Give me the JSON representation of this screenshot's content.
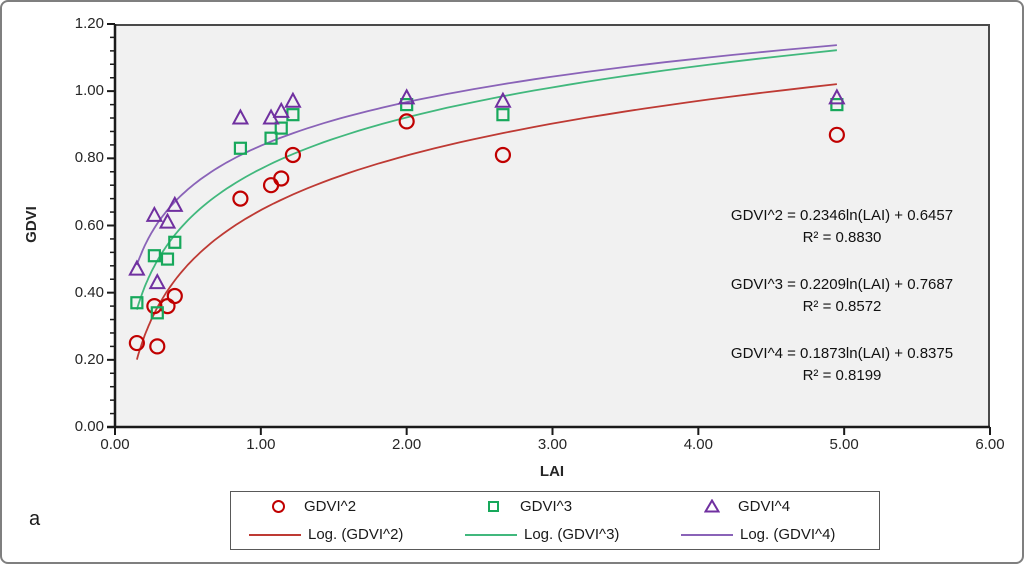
{
  "figure": {
    "panel_label": "a",
    "frame_border_color": "#7f7f7f",
    "background": "#ffffff"
  },
  "chart_data": {
    "type": "scatter",
    "title": "",
    "xlabel": "LAI",
    "ylabel": "GDVI",
    "xlim": [
      0,
      6
    ],
    "ylim": [
      0,
      1.2
    ],
    "x_ticks": [
      "0.00",
      "1.00",
      "2.00",
      "3.00",
      "4.00",
      "5.00",
      "6.00"
    ],
    "y_ticks": [
      "0.00",
      "0.20",
      "0.40",
      "0.60",
      "0.80",
      "1.00",
      "1.20"
    ],
    "y_minor_tick_step": 0.04,
    "grid": false,
    "plot_bg": "#F1F1F1",
    "legend_position": "bottom",
    "trend_x_range": [
      0.15,
      4.95
    ],
    "x": [
      0.15,
      0.29,
      0.27,
      0.36,
      0.41,
      0.86,
      1.07,
      1.14,
      1.22,
      2.0,
      2.66,
      4.95
    ],
    "series": [
      {
        "name": "GDVI^2",
        "marker": "circle",
        "color": "#C00000",
        "values": [
          0.25,
          0.24,
          0.36,
          0.36,
          0.39,
          0.68,
          0.72,
          0.74,
          0.81,
          0.91,
          0.81,
          0.87
        ],
        "trendline": {
          "label": "Log. (GDVI^2)",
          "type": "logarithmic",
          "a": 0.2346,
          "b": 0.6457,
          "r2": "0.8830",
          "color": "#BE3A34"
        }
      },
      {
        "name": "GDVI^3",
        "marker": "square",
        "color": "#17A85B",
        "values": [
          0.37,
          0.34,
          0.51,
          0.5,
          0.55,
          0.83,
          0.86,
          0.89,
          0.93,
          0.96,
          0.93,
          0.96
        ],
        "trendline": {
          "label": "Log. (GDVI^3)",
          "type": "logarithmic",
          "a": 0.2209,
          "b": 0.7687,
          "r2": "0.8572",
          "color": "#41B87D"
        }
      },
      {
        "name": "GDVI^4",
        "marker": "triangle",
        "color": "#7030A0",
        "values": [
          0.47,
          0.43,
          0.63,
          0.61,
          0.66,
          0.92,
          0.92,
          0.94,
          0.97,
          0.98,
          0.97,
          0.98
        ],
        "trendline": {
          "label": "Log. (GDVI^4)",
          "type": "logarithmic",
          "a": 0.1873,
          "b": 0.8375,
          "r2": "0.8199",
          "color": "#8A63B8"
        }
      }
    ],
    "annotations": [
      {
        "lines": [
          "GDVI^2 = 0.2346ln(LAI) + 0.6457",
          "R² = 0.8830"
        ]
      },
      {
        "lines": [
          "GDVI^3 = 0.2209ln(LAI) + 0.7687",
          "R² = 0.8572"
        ]
      },
      {
        "lines": [
          "GDVI^4 = 0.1873ln(LAI) + 0.8375",
          "R² = 0.8199"
        ]
      }
    ],
    "legend": {
      "rows": [
        {
          "items": [
            {
              "label": "GDVI^2",
              "marker": "circle"
            },
            {
              "label": "GDVI^3",
              "marker": "square"
            },
            {
              "label": "GDVI^4",
              "marker": "triangle"
            }
          ]
        },
        {
          "items": [
            {
              "label": "Log. (GDVI^2)",
              "marker": "line"
            },
            {
              "label": "Log. (GDVI^3)",
              "marker": "line"
            },
            {
              "label": "Log. (GDVI^4)",
              "marker": "line"
            }
          ]
        }
      ]
    }
  }
}
